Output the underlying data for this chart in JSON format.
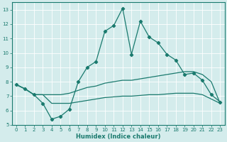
{
  "xlabel": "Humidex (Indice chaleur)",
  "background_color": "#d4ecec",
  "line_color": "#1a7a6e",
  "grid_color": "#b8d8d8",
  "xlim": [
    -0.5,
    23.5
  ],
  "ylim": [
    5,
    13.5
  ],
  "yticks": [
    5,
    6,
    7,
    8,
    9,
    10,
    11,
    12,
    13
  ],
  "xticks": [
    0,
    1,
    2,
    3,
    4,
    5,
    6,
    7,
    8,
    9,
    10,
    11,
    12,
    13,
    14,
    15,
    16,
    17,
    18,
    19,
    20,
    21,
    22,
    23
  ],
  "curve1_x": [
    0,
    1,
    2,
    3,
    4,
    5,
    6,
    7,
    8,
    9,
    10,
    11,
    12,
    13,
    14,
    15,
    16,
    17,
    18,
    19,
    20,
    21,
    22,
    23
  ],
  "curve1_y": [
    7.8,
    7.5,
    7.1,
    6.5,
    5.4,
    5.6,
    6.1,
    8.0,
    9.0,
    9.4,
    11.5,
    11.9,
    13.1,
    9.9,
    12.2,
    11.1,
    10.7,
    9.9,
    9.5,
    8.5,
    8.6,
    8.1,
    7.1,
    6.6
  ],
  "curve2_x": [
    0,
    1,
    2,
    3,
    4,
    5,
    6,
    7,
    8,
    9,
    10,
    11,
    12,
    13,
    14,
    15,
    16,
    17,
    18,
    19,
    20,
    21,
    22,
    23
  ],
  "curve2_y": [
    7.8,
    7.5,
    7.1,
    7.1,
    6.5,
    6.5,
    6.5,
    6.6,
    6.7,
    6.8,
    6.9,
    6.95,
    7.0,
    7.0,
    7.05,
    7.1,
    7.1,
    7.15,
    7.2,
    7.2,
    7.2,
    7.1,
    6.8,
    6.5
  ],
  "curve3_x": [
    0,
    1,
    2,
    3,
    4,
    5,
    6,
    7,
    8,
    9,
    10,
    11,
    12,
    13,
    14,
    15,
    16,
    17,
    18,
    19,
    20,
    21,
    22,
    23
  ],
  "curve3_y": [
    7.8,
    7.5,
    7.1,
    7.1,
    7.1,
    7.1,
    7.2,
    7.4,
    7.6,
    7.7,
    7.9,
    8.0,
    8.1,
    8.1,
    8.2,
    8.3,
    8.4,
    8.5,
    8.6,
    8.7,
    8.7,
    8.5,
    8.0,
    6.5
  ]
}
